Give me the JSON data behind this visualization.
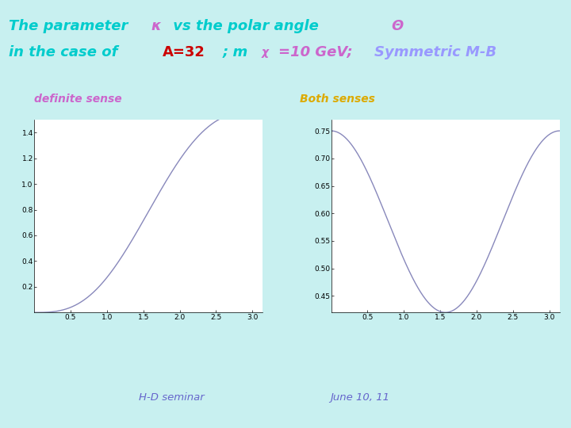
{
  "bg_color": "#c8f0f0",
  "plot_bg_color": "#ffffff",
  "label_left": "definite sense",
  "label_right": "Both senses",
  "footer_left": "H-D seminar",
  "footer_right": "June 10, 11",
  "left_yticks": [
    0.2,
    0.4,
    0.6,
    0.8,
    1.0,
    1.2,
    1.4
  ],
  "right_yticks": [
    0.45,
    0.5,
    0.55,
    0.6,
    0.65,
    0.7,
    0.75
  ],
  "xticks": [
    0.5,
    1.0,
    1.5,
    2.0,
    2.5,
    3.0
  ],
  "line_color": "#8888bb",
  "curve_lw": 1.0,
  "title_color_main": "#00cccc",
  "title_color_kappa": "#cc66cc",
  "title_color_A": "#cc0000",
  "title_color_mx": "#cc66cc",
  "title_color_symm": "#9999ff",
  "label_left_color": "#cc66cc",
  "label_right_color": "#ddaa00",
  "footer_color": "#6666cc"
}
